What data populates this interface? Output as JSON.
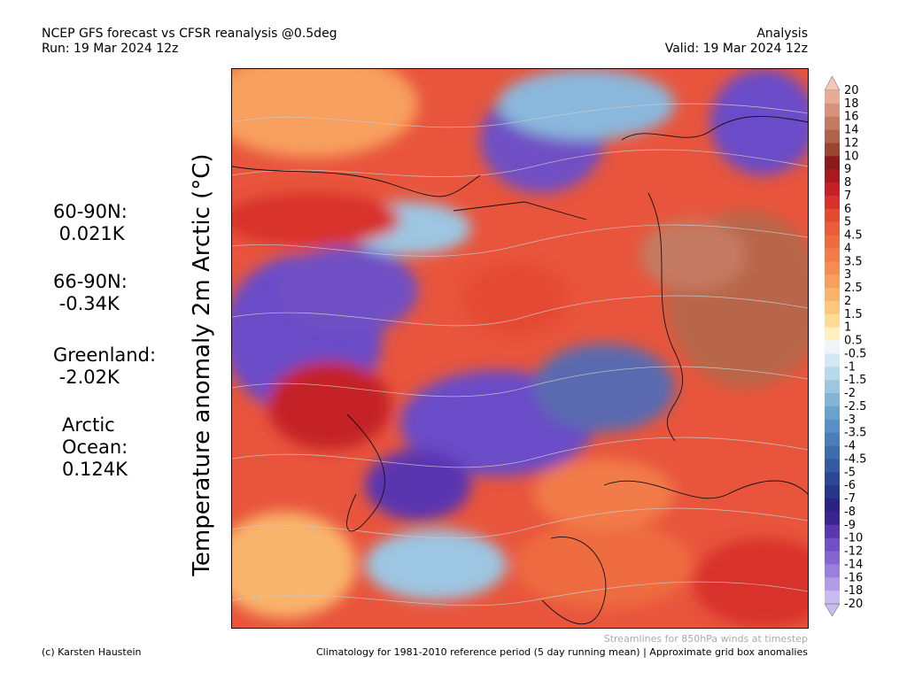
{
  "header": {
    "title_line1": "NCEP GFS forecast vs CFSR reanalysis @0.5deg",
    "title_line2": "Run: 19 Mar 2024 12z",
    "right_line1": "Analysis",
    "right_line2": "Valid: 19 Mar 2024 12z"
  },
  "axis_label": "Temperature anomaly 2m Arctic (°C)",
  "stats": [
    {
      "label": "60-90N:",
      "value": " 0.021K"
    },
    {
      "label": "66-90N:",
      "value": " -0.34K"
    },
    {
      "label": "Greenland:",
      "value": " -2.02K"
    },
    {
      "label": "Arctic\nOcean:",
      "value": "0.124K"
    }
  ],
  "colorbar": {
    "levels": [
      {
        "label": "20",
        "color": "#f2c8b8"
      },
      {
        "label": "18",
        "color": "#e6ac98"
      },
      {
        "label": "16",
        "color": "#d6927a"
      },
      {
        "label": "14",
        "color": "#c47a62"
      },
      {
        "label": "12",
        "color": "#b0634c"
      },
      {
        "label": "10",
        "color": "#9a4532"
      },
      {
        "label": "9",
        "color": "#8b1a1a"
      },
      {
        "label": "8",
        "color": "#a81a1e"
      },
      {
        "label": "7",
        "color": "#c42026"
      },
      {
        "label": "6",
        "color": "#d8302a"
      },
      {
        "label": "5",
        "color": "#e44a32"
      },
      {
        "label": "4.5",
        "color": "#ea5c3a"
      },
      {
        "label": "4",
        "color": "#ee6c40"
      },
      {
        "label": "3.5",
        "color": "#f27c48"
      },
      {
        "label": "3",
        "color": "#f58c52"
      },
      {
        "label": "2.5",
        "color": "#f7a05e"
      },
      {
        "label": "2",
        "color": "#f9b46c"
      },
      {
        "label": "1.5",
        "color": "#fbc87e"
      },
      {
        "label": "1",
        "color": "#fddc96"
      },
      {
        "label": "0.5",
        "color": "#fff0c4"
      },
      {
        "label": "-0.5",
        "color": "#eef6fb"
      },
      {
        "label": "-1",
        "color": "#d4e8f4"
      },
      {
        "label": "-1.5",
        "color": "#b8d8ec"
      },
      {
        "label": "-2",
        "color": "#9cc6e2"
      },
      {
        "label": "-2.5",
        "color": "#82b4d8"
      },
      {
        "label": "-3",
        "color": "#6aa2ce"
      },
      {
        "label": "-3.5",
        "color": "#5890c4"
      },
      {
        "label": "-4",
        "color": "#4a7eb8"
      },
      {
        "label": "-4.5",
        "color": "#3e6cac"
      },
      {
        "label": "-5",
        "color": "#345aa0"
      },
      {
        "label": "-6",
        "color": "#2c4894"
      },
      {
        "label": "-7",
        "color": "#283688"
      },
      {
        "label": "-8",
        "color": "#2a2480"
      },
      {
        "label": "-9",
        "color": "#3a2490"
      },
      {
        "label": "-10",
        "color": "#5a36b0"
      },
      {
        "label": "-12",
        "color": "#7050c4"
      },
      {
        "label": "-14",
        "color": "#8466d0"
      },
      {
        "label": "-16",
        "color": "#9a80dc"
      },
      {
        "label": "-18",
        "color": "#b29ce6"
      },
      {
        "label": "-20",
        "color": "#cabaf0"
      }
    ]
  },
  "map_colors": {
    "ocean_warm": "#e8553c",
    "cold": "#6a4cc8",
    "cool": "#8ab8dc",
    "hot": "#b8664a",
    "coast": "#111111",
    "stream": "#c9c9c9"
  },
  "footer": {
    "streamline_note": "Streamlines for 850hPa winds at timestep",
    "credit": "(c) Karsten Haustein",
    "climatology": "Climatology for 1981-2010 reference period (5 day running mean) | Approximate grid box anomalies"
  }
}
